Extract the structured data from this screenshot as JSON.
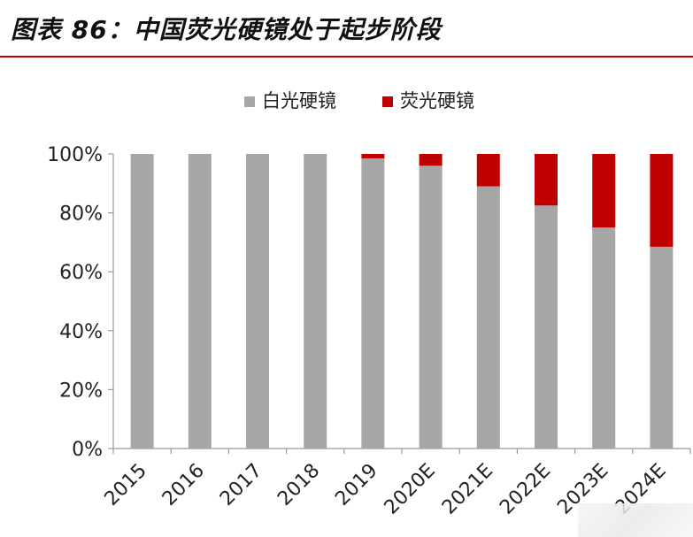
{
  "figure": {
    "title": "图表 86：中国荧光硬镜处于起步阶段"
  },
  "colors": {
    "accent": "#c00000",
    "white_lens": "#a6a6a6",
    "fluorescent_lens": "#c00000",
    "axis": "#999999",
    "text": "#222222"
  },
  "chart_data": {
    "type": "bar",
    "stacked": true,
    "categories": [
      "2015",
      "2016",
      "2017",
      "2018",
      "2019",
      "2020E",
      "2021E",
      "2022E",
      "2023E",
      "2024E"
    ],
    "series": [
      {
        "name": "白光硬镜",
        "values": [
          100,
          100,
          100,
          100,
          98.5,
          96,
          89,
          82.5,
          75,
          68.5
        ]
      },
      {
        "name": "荧光硬镜",
        "values": [
          0,
          0,
          0,
          0,
          1.5,
          4,
          11,
          17.5,
          25,
          31.5
        ]
      }
    ],
    "ylim": [
      0,
      100
    ],
    "yticks": [
      "0%",
      "20%",
      "40%",
      "60%",
      "80%",
      "100%"
    ],
    "xlabel": "",
    "ylabel": "",
    "legend_position": "top-center",
    "grid": false
  }
}
